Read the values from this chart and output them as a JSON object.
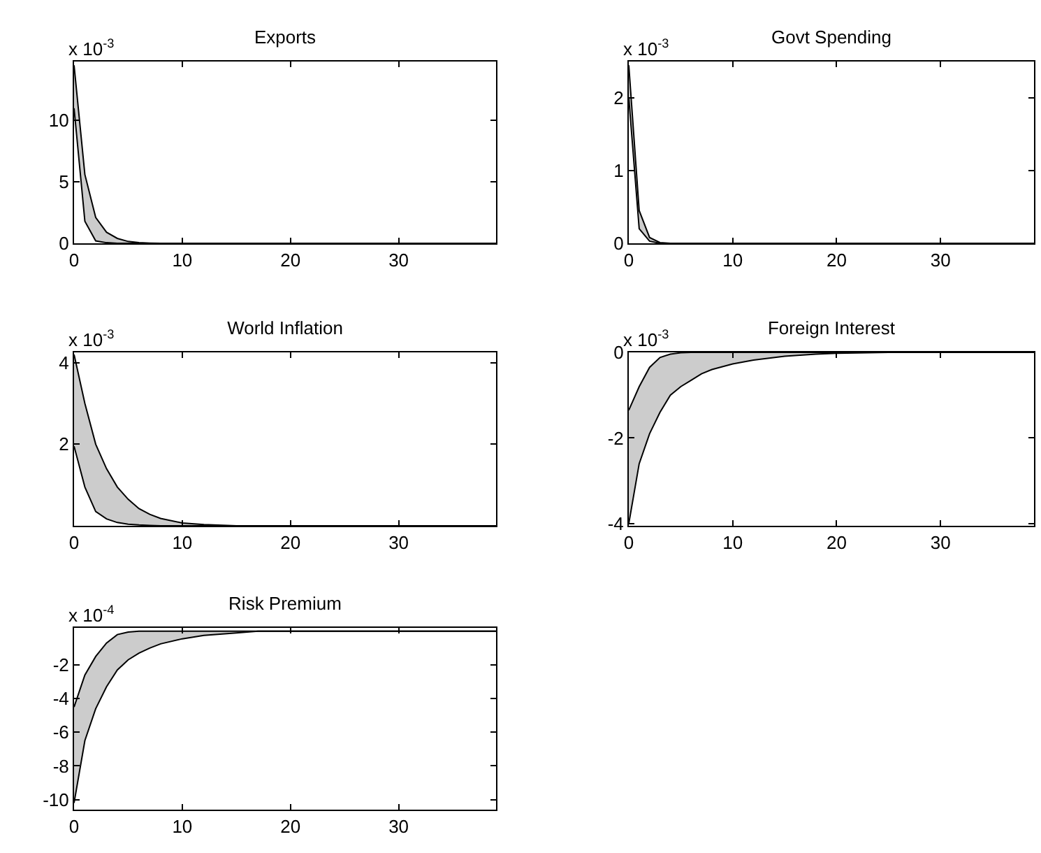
{
  "chart_data": [
    {
      "type": "line",
      "title": "Exports",
      "annotations": [
        "x 10$^{-3}$"
      ],
      "xlim": [
        0,
        39
      ],
      "xticks": [
        0,
        10,
        20,
        30
      ],
      "ylim": [
        0,
        14.8
      ],
      "yticks": [
        0,
        5,
        10
      ],
      "grid": false,
      "series": [
        {
          "color": "#cccccc",
          "x": [
            0,
            1,
            2,
            3,
            4,
            5,
            6,
            7,
            8,
            39
          ],
          "values": [
            null,
            null,
            null,
            null,
            null,
            null,
            null,
            null,
            null,
            null
          ],
          "lower": [
            11,
            1.8,
            0.2,
            0.05,
            0,
            0,
            0,
            0,
            0,
            0
          ],
          "upper": [
            14.5,
            5.6,
            2.1,
            0.9,
            0.4,
            0.15,
            0.06,
            0.02,
            0,
            0
          ]
        },
        {
          "color": "#000000",
          "x": [
            0,
            1,
            2,
            3,
            4,
            5,
            6,
            7,
            8,
            39
          ],
          "values": [
            11,
            1.8,
            0.2,
            0.05,
            0,
            0,
            0,
            0,
            0,
            0
          ]
        },
        {
          "color": "#000000",
          "x": [
            0,
            1,
            2,
            3,
            4,
            5,
            6,
            7,
            8,
            39
          ],
          "values": [
            14.5,
            5.6,
            2.1,
            0.9,
            0.4,
            0.15,
            0.06,
            0.02,
            0,
            0
          ]
        }
      ]
    },
    {
      "type": "line",
      "title": "Govt Spending",
      "annotations": [
        "x 10$^{-3}$"
      ],
      "xlim": [
        0,
        39
      ],
      "xticks": [
        0,
        10,
        20,
        30
      ],
      "ylim": [
        0,
        2.5
      ],
      "yticks": [
        0,
        1,
        2
      ],
      "grid": false,
      "series": [
        {
          "color": "#cccccc",
          "x": [
            0,
            1,
            2,
            3,
            4,
            39
          ],
          "values": [
            null,
            null,
            null,
            null,
            null,
            null
          ],
          "lower": [
            2.0,
            0.2,
            0.03,
            0,
            0,
            0
          ],
          "upper": [
            2.45,
            0.45,
            0.08,
            0.01,
            0,
            0
          ]
        },
        {
          "color": "#000000",
          "x": [
            0,
            1,
            2,
            3,
            4,
            39
          ],
          "values": [
            2.0,
            0.2,
            0.03,
            0,
            0,
            0
          ]
        },
        {
          "color": "#000000",
          "x": [
            0,
            1,
            2,
            3,
            4,
            39
          ],
          "values": [
            2.45,
            0.45,
            0.08,
            0.01,
            0,
            0
          ]
        }
      ]
    },
    {
      "type": "line",
      "title": "World Inflation",
      "annotations": [
        "x 10$^{-3}$"
      ],
      "xlim": [
        0,
        39
      ],
      "xticks": [
        0,
        10,
        20,
        30
      ],
      "ylim": [
        0,
        4.25
      ],
      "yticks": [
        2,
        4
      ],
      "grid": false,
      "series": [
        {
          "color": "#cccccc",
          "x": [
            0,
            1,
            2,
            3,
            4,
            5,
            6,
            7,
            8,
            10,
            12,
            15,
            39
          ],
          "values": [
            null,
            null,
            null,
            null,
            null,
            null,
            null,
            null,
            null,
            null,
            null,
            null,
            null
          ],
          "lower": [
            1.95,
            0.95,
            0.35,
            0.17,
            0.08,
            0.04,
            0.02,
            0.01,
            0,
            0,
            0,
            0,
            0
          ],
          "upper": [
            4.2,
            3.0,
            2.0,
            1.4,
            0.95,
            0.65,
            0.42,
            0.28,
            0.18,
            0.07,
            0.03,
            0,
            0
          ]
        },
        {
          "color": "#000000",
          "x": [
            0,
            1,
            2,
            3,
            4,
            5,
            6,
            7,
            8,
            10,
            12,
            15,
            39
          ],
          "values": [
            1.95,
            0.95,
            0.35,
            0.17,
            0.08,
            0.04,
            0.02,
            0.01,
            0,
            0,
            0,
            0,
            0
          ]
        },
        {
          "color": "#000000",
          "x": [
            0,
            1,
            2,
            3,
            4,
            5,
            6,
            7,
            8,
            10,
            12,
            15,
            39
          ],
          "values": [
            4.2,
            3.0,
            2.0,
            1.4,
            0.95,
            0.65,
            0.42,
            0.28,
            0.18,
            0.07,
            0.03,
            0,
            0
          ]
        }
      ]
    },
    {
      "type": "line",
      "title": "Foreign Interest",
      "annotations": [
        "x 10$^{-3}$"
      ],
      "xlim": [
        0,
        39
      ],
      "xticks": [
        0,
        10,
        20,
        30
      ],
      "ylim": [
        -4.05,
        0
      ],
      "yticks": [
        -4,
        -2,
        0
      ],
      "grid": false,
      "series": [
        {
          "color": "#cccccc",
          "x": [
            0,
            1,
            2,
            3,
            4,
            5,
            6,
            7,
            8,
            10,
            12,
            15,
            18,
            20,
            25,
            39
          ],
          "values": [
            null,
            null,
            null,
            null,
            null,
            null,
            null,
            null,
            null,
            null,
            null,
            null,
            null,
            null,
            null,
            null
          ],
          "lower": [
            -4.0,
            -2.6,
            -1.9,
            -1.4,
            -1.0,
            -0.8,
            -0.65,
            -0.5,
            -0.4,
            -0.27,
            -0.18,
            -0.09,
            -0.04,
            -0.02,
            0,
            0
          ],
          "upper": [
            -1.35,
            -0.8,
            -0.35,
            -0.12,
            -0.04,
            -0.01,
            0,
            0,
            0,
            0,
            0,
            0,
            0,
            0,
            0,
            0
          ]
        },
        {
          "color": "#000000",
          "x": [
            0,
            1,
            2,
            3,
            4,
            5,
            6,
            7,
            8,
            10,
            12,
            15,
            18,
            20,
            25,
            39
          ],
          "values": [
            -4.0,
            -2.6,
            -1.9,
            -1.4,
            -1.0,
            -0.8,
            -0.65,
            -0.5,
            -0.4,
            -0.27,
            -0.18,
            -0.09,
            -0.04,
            -0.02,
            0,
            0
          ]
        },
        {
          "color": "#000000",
          "x": [
            0,
            1,
            2,
            3,
            4,
            5,
            6,
            7,
            8,
            10,
            12,
            15,
            18,
            20,
            25,
            39
          ],
          "values": [
            -1.35,
            -0.8,
            -0.35,
            -0.12,
            -0.04,
            -0.01,
            0,
            0,
            0,
            0,
            0,
            0,
            0,
            0,
            0,
            0
          ]
        }
      ]
    },
    {
      "type": "line",
      "title": "Risk Premium",
      "annotations": [
        "x 10$^{-4}$"
      ],
      "xlim": [
        0,
        39
      ],
      "xticks": [
        0,
        10,
        20,
        30
      ],
      "ylim": [
        -10.6,
        0.2
      ],
      "yticks": [
        -10,
        -8,
        -6,
        -4,
        -2
      ],
      "grid": false,
      "series": [
        {
          "color": "#cccccc",
          "x": [
            0,
            1,
            2,
            3,
            4,
            5,
            6,
            7,
            8,
            10,
            12,
            15,
            17,
            39
          ],
          "values": [
            null,
            null,
            null,
            null,
            null,
            null,
            null,
            null,
            null,
            null,
            null,
            null,
            null,
            null
          ],
          "lower": [
            -10.2,
            -6.5,
            -4.6,
            -3.3,
            -2.3,
            -1.7,
            -1.3,
            -1.0,
            -0.75,
            -0.45,
            -0.25,
            -0.1,
            0,
            0
          ],
          "upper": [
            -4.5,
            -2.6,
            -1.5,
            -0.7,
            -0.2,
            -0.05,
            0,
            0,
            0,
            0,
            0,
            0,
            0,
            0
          ]
        },
        {
          "color": "#000000",
          "x": [
            0,
            1,
            2,
            3,
            4,
            5,
            6,
            7,
            8,
            10,
            12,
            15,
            17,
            39
          ],
          "values": [
            -10.2,
            -6.5,
            -4.6,
            -3.3,
            -2.3,
            -1.7,
            -1.3,
            -1.0,
            -0.75,
            -0.45,
            -0.25,
            -0.1,
            0,
            0
          ]
        },
        {
          "color": "#000000",
          "x": [
            0,
            1,
            2,
            3,
            4,
            5,
            6,
            7,
            8,
            10,
            12,
            15,
            17,
            39
          ],
          "values": [
            -4.5,
            -2.6,
            -1.5,
            -0.7,
            -0.2,
            -0.05,
            0,
            0,
            0,
            0,
            0,
            0,
            0,
            0
          ]
        }
      ]
    }
  ]
}
